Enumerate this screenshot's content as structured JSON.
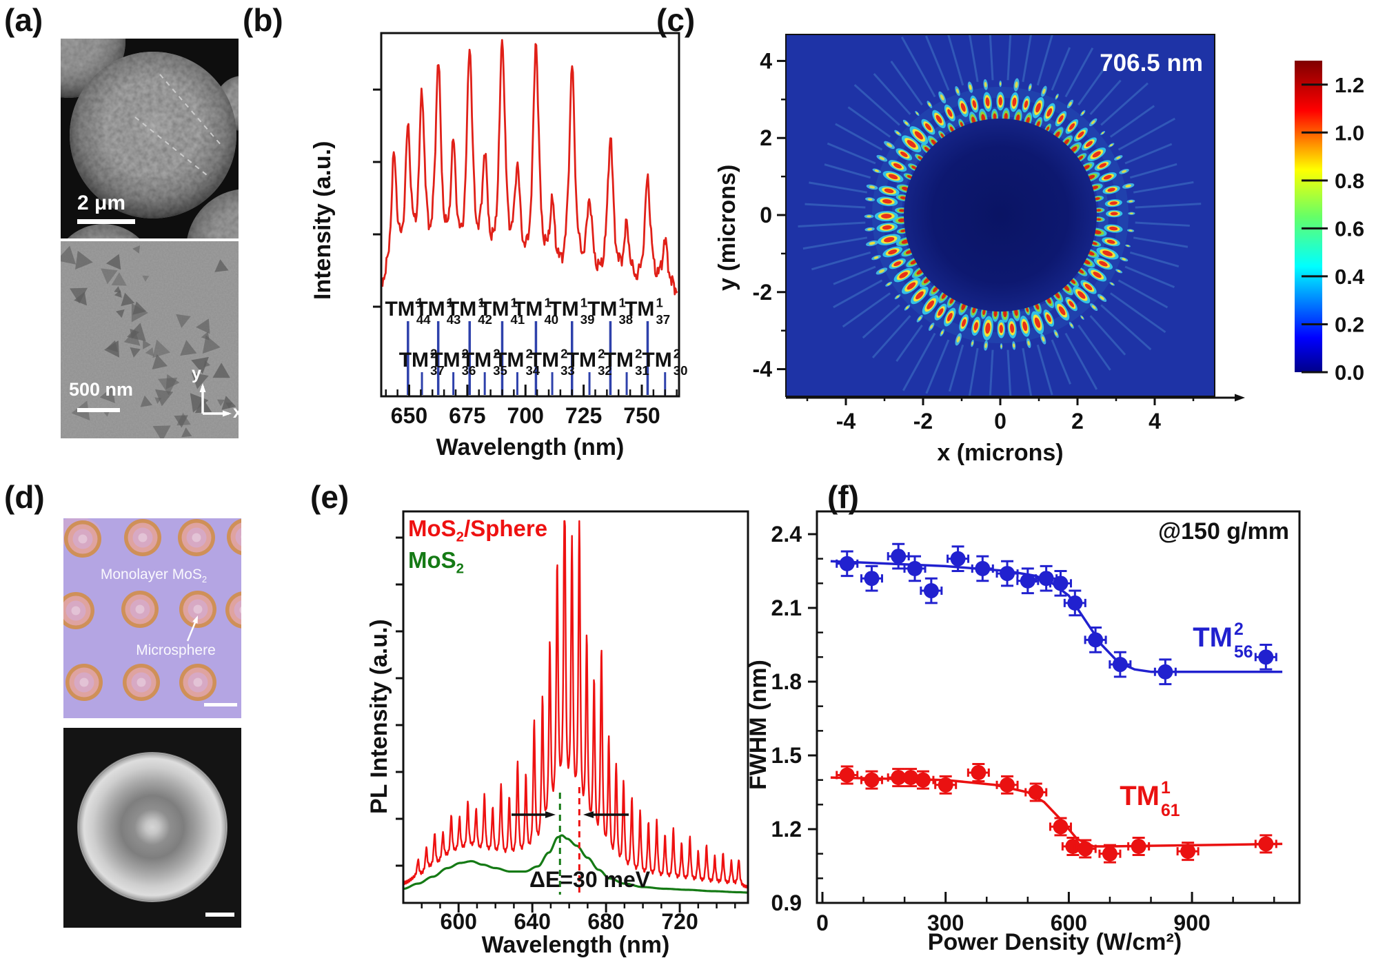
{
  "figure_labels": {
    "a": "(a)",
    "b": "(b)",
    "c": "(c)",
    "d": "(d)",
    "e": "(e)",
    "f": "(f)"
  },
  "panel_a": {
    "top_scale_bar": "2 μm",
    "bottom_scale_bar": "500 nm",
    "axis_x": "x",
    "axis_y": "y"
  },
  "panel_d": {
    "monolayer_pre": "Monolayer MoS",
    "monolayer_sub": "2",
    "microsphere": "Microsphere"
  },
  "chart_data": [
    {
      "panel": "b",
      "type": "line",
      "xlabel": "Wavelength (nm)",
      "ylabel": "Intensity (a.u.)",
      "xlim": [
        638,
        766
      ],
      "xticks": [
        650,
        675,
        700,
        725,
        750
      ],
      "series": [
        {
          "name": "spectrum",
          "color": "#e02018",
          "baseline": 0.05,
          "peaks": [
            [
              643.5,
              0.52
            ],
            [
              649.5,
              0.6
            ],
            [
              655.5,
              0.74
            ],
            [
              662.5,
              0.88
            ],
            [
              669,
              0.52
            ],
            [
              676,
              0.95
            ],
            [
              682.5,
              0.48
            ],
            [
              690,
              1.0
            ],
            [
              696.5,
              0.44
            ],
            [
              704.5,
              0.99
            ],
            [
              711.5,
              0.3
            ],
            [
              720,
              0.9
            ],
            [
              727.5,
              0.34
            ],
            [
              736.5,
              0.62
            ],
            [
              743.5,
              0.24
            ],
            [
              752.5,
              0.46
            ],
            [
              760,
              0.2
            ]
          ]
        }
      ],
      "mode_markers": {
        "color": "#2e41ab",
        "base": "TM",
        "tm1": {
          "sup": "1",
          "modes": [
            [
              649.5,
              "44"
            ],
            [
              662.5,
              "43"
            ],
            [
              676,
              "42"
            ],
            [
              690,
              "41"
            ],
            [
              704.5,
              "40"
            ],
            [
              720,
              "39"
            ],
            [
              736.5,
              "38"
            ],
            [
              752.5,
              "37"
            ]
          ]
        },
        "tm2": {
          "sup": "2",
          "modes": [
            [
              655.5,
              "37"
            ],
            [
              669,
              "36"
            ],
            [
              682.5,
              "35"
            ],
            [
              696.5,
              "34"
            ],
            [
              711.5,
              "33"
            ],
            [
              727.5,
              "32"
            ],
            [
              743.5,
              "31"
            ],
            [
              760,
              "30"
            ]
          ]
        }
      }
    },
    {
      "panel": "c",
      "type": "heatmap",
      "annotation": "706.5 nm",
      "xlabel": "x (microns)",
      "ylabel": "y (microns)",
      "xticks": [
        -4,
        -2,
        0,
        2,
        4
      ],
      "yticks": [
        4,
        2,
        0,
        -2,
        -4
      ],
      "xlim": [
        -5.5,
        5.5
      ],
      "ylim": [
        -4.7,
        4.7
      ],
      "colorbar": {
        "min": 0.0,
        "max": 1.3,
        "ticks": [
          1.2,
          1.0,
          0.8,
          0.6,
          0.4,
          0.2,
          0.0
        ]
      },
      "field": {
        "disc_radius_microns": 2.5,
        "ring_radii_microns": [
          2.55,
          2.95,
          3.4
        ],
        "azimuthal_lobes": 56
      }
    },
    {
      "panel": "e",
      "type": "line",
      "xlabel": "Wavelength (nm)",
      "ylabel": "PL Intensity (a.u.)",
      "xlim": [
        570,
        757
      ],
      "xticks": [
        600,
        640,
        680,
        720
      ],
      "legend": [
        {
          "pre": "MoS",
          "sub": "2",
          "post": "/Sphere",
          "color": "#ee1111"
        },
        {
          "pre": "MoS",
          "sub": "2",
          "post": "",
          "color": "#157a15"
        }
      ],
      "annotations": {
        "delta_label": "ΔE=30 meV",
        "green_dashed_nm": 655,
        "red_dashed_nm": 665.5
      },
      "series": [
        {
          "name": "MoS2/Sphere",
          "color": "#ee1111",
          "comb_peaks": [
            [
              578,
              0.05
            ],
            [
              582.5,
              0.07
            ],
            [
              587,
              0.1
            ],
            [
              591.5,
              0.08
            ],
            [
              596,
              0.12
            ],
            [
              600.5,
              0.1
            ],
            [
              605,
              0.14
            ],
            [
              609.5,
              0.12
            ],
            [
              614,
              0.17
            ],
            [
              618.5,
              0.14
            ],
            [
              623,
              0.21
            ],
            [
              627.5,
              0.18
            ],
            [
              632,
              0.28
            ],
            [
              636.5,
              0.24
            ],
            [
              641,
              0.38
            ],
            [
              645.5,
              0.42
            ],
            [
              649.5,
              0.55
            ],
            [
              653.5,
              0.72
            ],
            [
              657.5,
              1.0
            ],
            [
              661.5,
              0.8
            ],
            [
              665.5,
              0.88
            ],
            [
              669.5,
              0.58
            ],
            [
              673.5,
              0.48
            ],
            [
              677.5,
              0.6
            ],
            [
              681.5,
              0.36
            ],
            [
              685.5,
              0.3
            ],
            [
              689.5,
              0.26
            ],
            [
              694,
              0.22
            ],
            [
              698.5,
              0.19
            ],
            [
              703,
              0.16
            ],
            [
              707.5,
              0.17
            ],
            [
              712,
              0.13
            ],
            [
              716.5,
              0.15
            ],
            [
              721,
              0.11
            ],
            [
              725.5,
              0.13
            ],
            [
              730,
              0.09
            ],
            [
              734.5,
              0.11
            ],
            [
              739,
              0.08
            ],
            [
              743.5,
              0.09
            ],
            [
              748,
              0.07
            ],
            [
              752,
              0.08
            ]
          ]
        },
        {
          "name": "MoS2",
          "color": "#157a15",
          "points": [
            [
              570,
              0.025
            ],
            [
              578,
              0.04
            ],
            [
              586,
              0.06
            ],
            [
              594,
              0.085
            ],
            [
              601,
              0.1
            ],
            [
              607,
              0.105
            ],
            [
              613,
              0.095
            ],
            [
              620,
              0.085
            ],
            [
              628,
              0.075
            ],
            [
              636,
              0.075
            ],
            [
              643,
              0.09
            ],
            [
              649,
              0.13
            ],
            [
              654,
              0.175
            ],
            [
              656,
              0.18
            ],
            [
              659,
              0.17
            ],
            [
              664,
              0.15
            ],
            [
              670,
              0.115
            ],
            [
              676,
              0.08
            ],
            [
              682,
              0.055
            ],
            [
              690,
              0.04
            ],
            [
              700,
              0.03
            ],
            [
              712,
              0.025
            ],
            [
              724,
              0.022
            ],
            [
              738,
              0.018
            ],
            [
              752,
              0.015
            ],
            [
              757,
              0.014
            ]
          ]
        }
      ]
    },
    {
      "panel": "f",
      "type": "scatter",
      "annotation": "@150 g/mm",
      "xlabel": "Power Density (W/cm²)",
      "ylabel": "FWHM (nm)",
      "xlim": [
        0,
        1150
      ],
      "ylim": [
        0.9,
        2.5
      ],
      "xticks": [
        0,
        300,
        600,
        900
      ],
      "yticks": [
        2.4,
        2.1,
        1.8,
        1.5,
        1.2,
        0.9
      ],
      "series": [
        {
          "name": "TM 2 56",
          "label": {
            "base": "TM",
            "sup": "2",
            "sub": "56"
          },
          "color": "#2121cf",
          "x": [
            60,
            120,
            185,
            225,
            265,
            330,
            390,
            450,
            500,
            545,
            580,
            615,
            665,
            725,
            835,
            1080
          ],
          "y": [
            2.28,
            2.22,
            2.31,
            2.26,
            2.17,
            2.3,
            2.26,
            2.24,
            2.21,
            2.22,
            2.2,
            2.12,
            1.97,
            1.87,
            1.84,
            1.9
          ],
          "yerr": 0.05,
          "fit": [
            [
              20,
              2.29
            ],
            [
              300,
              2.27
            ],
            [
              450,
              2.25
            ],
            [
              520,
              2.23
            ],
            [
              560,
              2.2
            ],
            [
              600,
              2.15
            ],
            [
              640,
              2.05
            ],
            [
              680,
              1.95
            ],
            [
              720,
              1.88
            ],
            [
              760,
              1.85
            ],
            [
              800,
              1.84
            ],
            [
              1120,
              1.84
            ]
          ]
        },
        {
          "name": "TM 1 61",
          "label": {
            "base": "TM",
            "sup": "1",
            "sub": "61"
          },
          "color": "#ea1111",
          "x": [
            60,
            120,
            185,
            215,
            245,
            300,
            380,
            450,
            520,
            580,
            610,
            640,
            700,
            770,
            890,
            1080
          ],
          "y": [
            1.42,
            1.4,
            1.41,
            1.41,
            1.4,
            1.38,
            1.43,
            1.38,
            1.35,
            1.21,
            1.13,
            1.12,
            1.1,
            1.13,
            1.11,
            1.14
          ],
          "yerr": 0.035,
          "fit": [
            [
              20,
              1.41
            ],
            [
              300,
              1.4
            ],
            [
              420,
              1.38
            ],
            [
              500,
              1.35
            ],
            [
              540,
              1.31
            ],
            [
              580,
              1.24
            ],
            [
              620,
              1.16
            ],
            [
              660,
              1.13
            ],
            [
              700,
              1.13
            ],
            [
              1120,
              1.14
            ]
          ]
        }
      ]
    }
  ]
}
